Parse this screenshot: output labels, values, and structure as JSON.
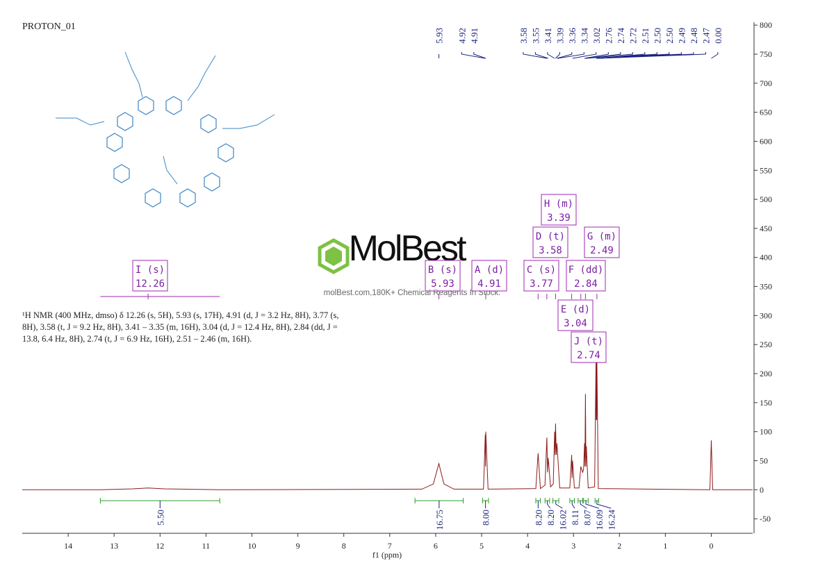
{
  "chart_data": {
    "type": "line",
    "title": "PROTON_01",
    "x_label": "f1 (ppm)",
    "watermark": "MolBest",
    "watermark_subtitle": "molBest.com,180K+ Chemical Reagents In Stock.",
    "description": [
      "¹H NMR (400 MHz, dmso) δ 12.26 (s, 5H), 5.93 (s, 17H), 4.91 (d, J = 3.2 Hz, 8H), 3.77 (s,",
      "8H), 3.58 (t, J = 9.2 Hz, 8H), 3.41 – 3.35 (m, 16H), 3.04 (d, J = 12.4 Hz, 8H), 2.84 (dd, J =",
      "13.8, 6.4 Hz, 8H), 2.74 (t, J = 6.9 Hz, 16H), 2.51 – 2.46 (m, 16H)."
    ],
    "xlim": [
      15,
      -0.9
    ],
    "xticks": [
      14,
      13,
      12,
      11,
      10,
      9,
      8,
      7,
      6,
      5,
      4,
      3,
      2,
      1,
      0
    ],
    "ylim": [
      -75,
      805
    ],
    "yticks": [
      -50,
      0,
      50,
      100,
      150,
      200,
      250,
      300,
      350,
      400,
      450,
      500,
      550,
      600,
      650,
      700,
      750,
      800
    ],
    "series": [
      {
        "color": "#8b1a1a",
        "x": [
          15,
          13.3,
          12.6,
          12.26,
          11.9,
          10.7,
          6.3,
          6.05,
          5.93,
          5.82,
          5.6,
          4.96,
          4.92,
          4.915,
          4.91,
          4.86,
          3.82,
          3.77,
          3.72,
          3.62,
          3.58,
          3.565,
          3.55,
          3.5,
          3.44,
          3.41,
          3.4,
          3.39,
          3.375,
          3.36,
          3.3,
          3.08,
          3.04,
          3.03,
          3.02,
          2.98,
          2.88,
          2.84,
          2.8,
          2.78,
          2.76,
          2.75,
          2.74,
          2.73,
          2.72,
          2.68,
          2.54,
          2.51,
          2.505,
          2.5,
          2.495,
          2.49,
          2.46,
          0.03,
          0,
          -0.03,
          -0.9
        ],
        "values": [
          0,
          0,
          1.5,
          3,
          1.5,
          0,
          1,
          10,
          45,
          10,
          1,
          1,
          95,
          40,
          100,
          1,
          2,
          63,
          2,
          8,
          90,
          30,
          55,
          5,
          10,
          100,
          60,
          114,
          60,
          80,
          3,
          3,
          60,
          20,
          50,
          3,
          3,
          40,
          30,
          35,
          80,
          40,
          165,
          40,
          75,
          3,
          5,
          220,
          120,
          258,
          120,
          220,
          2,
          0,
          85,
          0,
          0
        ]
      }
    ],
    "peak_labels": [
      5.93,
      4.92,
      4.91,
      3.58,
      3.55,
      3.41,
      3.39,
      3.36,
      3.34,
      3.02,
      2.76,
      2.74,
      2.72,
      2.51,
      {
        "value": 2.5,
        "label": "2.50"
      },
      {
        "value": 2.5,
        "label": "2.50"
      },
      2.49,
      2.48,
      2.47,
      {
        "value": 0,
        "label": "0.00"
      }
    ],
    "multiplets": [
      {
        "name": "I (s)",
        "shift": 12.26
      },
      {
        "name": "B (s)",
        "shift": 5.93
      },
      {
        "name": "A (d)",
        "shift": 4.91
      },
      {
        "name": "C (s)",
        "shift": 3.77
      },
      {
        "name": "D (t)",
        "shift": 3.58
      },
      {
        "name": "H (m)",
        "shift": 3.39
      },
      {
        "name": "G (m)",
        "shift": 2.49
      },
      {
        "name": "F (dd)",
        "shift": 2.84
      },
      {
        "name": "E (d)",
        "shift": 3.04
      },
      {
        "name": "J (t)",
        "shift": 2.74
      }
    ],
    "integrals": [
      {
        "value": 5.5,
        "label": "5.50",
        "range": [
          13.3,
          10.7
        ]
      },
      {
        "value": 16.75,
        "range": [
          6.45,
          5.4
        ]
      },
      {
        "value": 8,
        "label": "8.00",
        "range": [
          4.98,
          4.85
        ]
      },
      {
        "value": 8.2,
        "label": "8.20",
        "range": [
          3.82,
          3.72
        ]
      },
      {
        "value": 8.2,
        "label": "8.20",
        "range": [
          3.62,
          3.52
        ]
      },
      {
        "value": 16.02,
        "range": [
          3.45,
          3.32
        ]
      },
      {
        "value": 8.11,
        "range": [
          3.08,
          2.98
        ]
      },
      {
        "value": 8.07,
        "range": [
          2.9,
          2.8
        ]
      },
      {
        "value": 16.09,
        "range": [
          2.78,
          2.68
        ]
      },
      {
        "value": 16.24,
        "range": [
          2.53,
          2.45
        ]
      }
    ]
  }
}
